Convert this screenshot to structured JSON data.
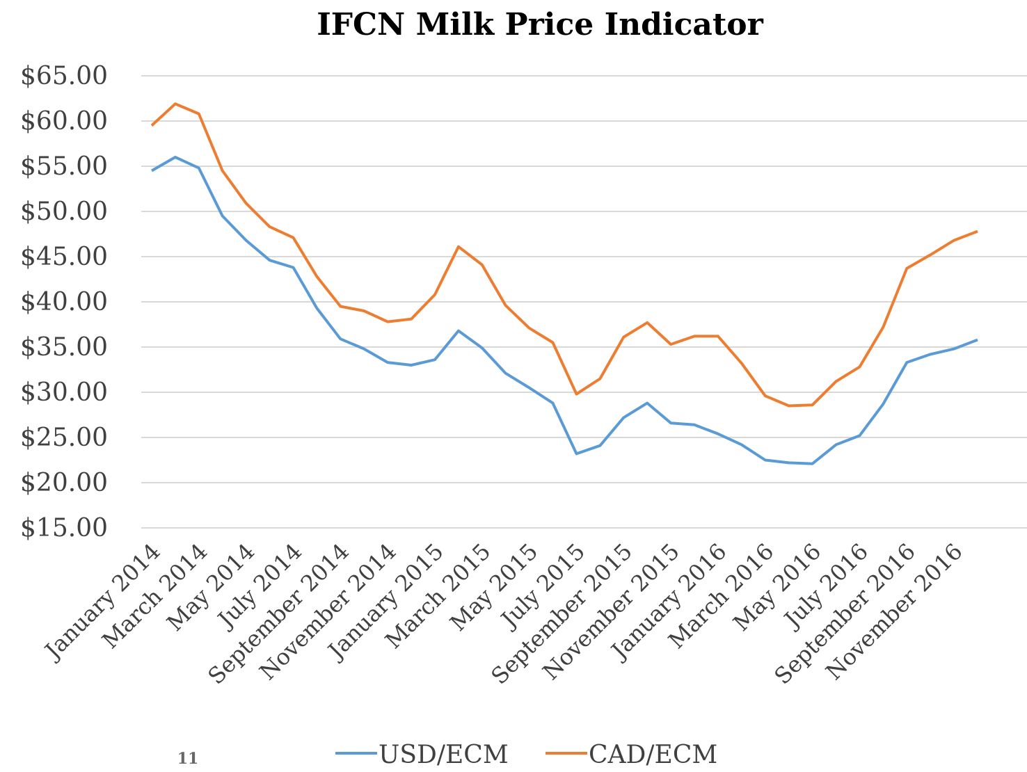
{
  "chart_data": {
    "type": "line",
    "title": "IFCN Milk Price Indicator",
    "page_number": "11",
    "categories": [
      "January 2014",
      null,
      "March 2014",
      null,
      "May 2014",
      null,
      "July 2014",
      null,
      "September 2014",
      null,
      "November 2014",
      null,
      "January 2015",
      null,
      "March 2015",
      null,
      "May 2015",
      null,
      "July 2015",
      null,
      "September 2015",
      null,
      "November 2015",
      null,
      "January 2016",
      null,
      "March 2016",
      null,
      "May 2016",
      null,
      "July 2016",
      null,
      "September 2016",
      null,
      "November 2016",
      null
    ],
    "series": [
      {
        "name": "USD/ECM",
        "color": "#5b9bd5",
        "values": [
          54.5,
          56.0,
          54.8,
          49.5,
          46.8,
          44.6,
          43.8,
          39.3,
          35.9,
          34.8,
          33.3,
          33.0,
          33.6,
          36.8,
          34.9,
          32.1,
          30.5,
          28.8,
          23.2,
          24.1,
          27.2,
          28.8,
          26.6,
          26.4,
          25.4,
          24.2,
          22.5,
          22.2,
          22.1,
          24.2,
          25.2,
          28.7,
          33.3,
          34.2,
          34.8,
          35.8
        ]
      },
      {
        "name": "CAD/ECM",
        "color": "#ed7d31",
        "values": [
          59.5,
          61.9,
          60.8,
          54.5,
          50.9,
          48.3,
          47.1,
          42.8,
          39.5,
          39.0,
          37.8,
          38.1,
          40.8,
          46.1,
          44.1,
          39.6,
          37.1,
          35.5,
          29.8,
          31.5,
          36.1,
          37.7,
          35.3,
          36.2,
          36.2,
          33.2,
          29.6,
          28.5,
          28.6,
          31.2,
          32.8,
          37.2,
          43.7,
          45.2,
          46.8,
          47.8
        ]
      }
    ],
    "ylim": [
      15,
      65
    ],
    "yticks": [
      {
        "value": 15,
        "label": "$15.00"
      },
      {
        "value": 20,
        "label": "$20.00"
      },
      {
        "value": 25,
        "label": "$25.00"
      },
      {
        "value": 30,
        "label": "$30.00"
      },
      {
        "value": 35,
        "label": "$35.00"
      },
      {
        "value": 40,
        "label": "$40.00"
      },
      {
        "value": 45,
        "label": "$45.00"
      },
      {
        "value": 50,
        "label": "$50.00"
      },
      {
        "value": 55,
        "label": "$55.00"
      },
      {
        "value": 60,
        "label": "$60.00"
      },
      {
        "value": 65,
        "label": "$65.00"
      }
    ],
    "grid": true,
    "legend": "bottom"
  }
}
